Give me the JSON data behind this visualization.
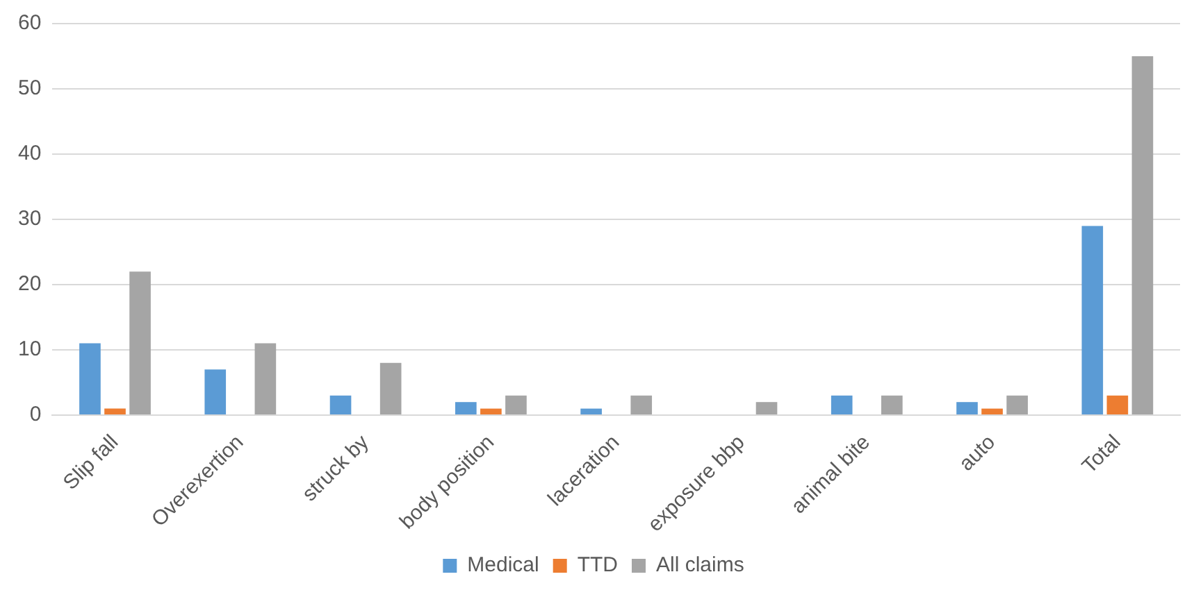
{
  "chart_data": {
    "type": "bar",
    "categories": [
      "Slip fall",
      "Overexertion",
      "struck by",
      "body position",
      "laceration",
      "exposure bbp",
      "animal bite",
      "auto",
      "Total"
    ],
    "series": [
      {
        "name": "Medical",
        "color": "#5b9bd5",
        "values": [
          11,
          7,
          3,
          2,
          1,
          0,
          3,
          2,
          29
        ]
      },
      {
        "name": "TTD",
        "color": "#ed7d31",
        "values": [
          1,
          0,
          0,
          1,
          0,
          0,
          0,
          1,
          3
        ]
      },
      {
        "name": "All claims",
        "color": "#a5a5a5",
        "values": [
          22,
          11,
          8,
          3,
          3,
          2,
          3,
          3,
          55
        ]
      }
    ],
    "ylim": [
      0,
      60
    ],
    "yticks": [
      0,
      10,
      20,
      30,
      40,
      50,
      60
    ],
    "grid": "y",
    "legend": "bottom"
  }
}
